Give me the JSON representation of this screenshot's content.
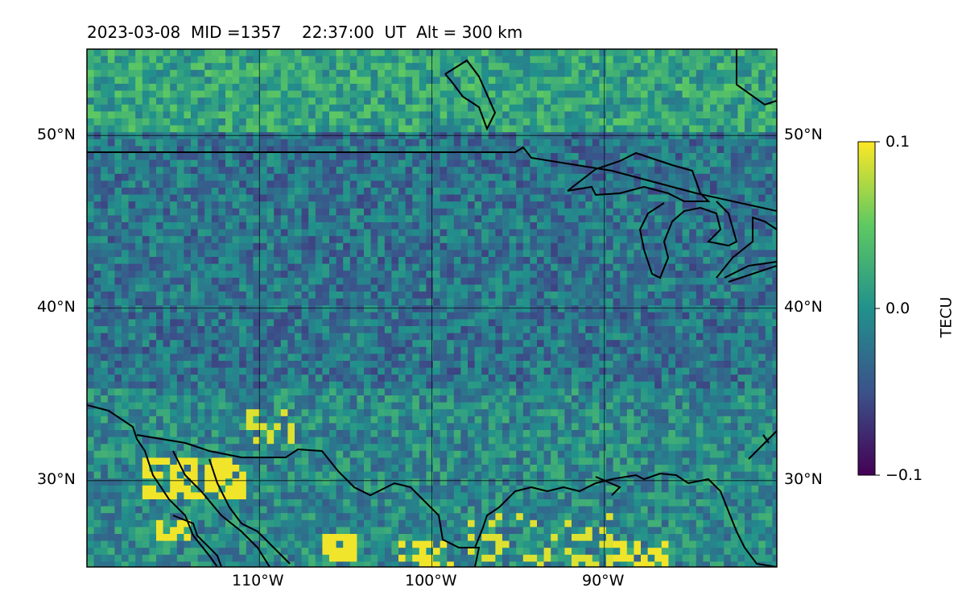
{
  "title": {
    "date": "2023-03-08",
    "mid": "MID =1357",
    "time": "22:37:00  UT",
    "alt": "Alt = 300 km"
  },
  "map": {
    "lon_range": [
      -120,
      -80
    ],
    "lat_range": [
      25,
      55
    ],
    "lon_ticks": [
      {
        "lon": -110,
        "label": "110°W"
      },
      {
        "lon": -100,
        "label": "100°W"
      },
      {
        "lon": -90,
        "label": "90°W"
      }
    ],
    "lat_ticks": [
      {
        "lat": 50,
        "label": "50°N"
      },
      {
        "lat": 40,
        "label": "40°N"
      },
      {
        "lat": 30,
        "label": "30°N"
      }
    ],
    "colormap": "viridis",
    "grid": true
  },
  "colorbar": {
    "label": "TECU",
    "min": -0.1,
    "max": 0.1,
    "ticks": [
      {
        "value": 0.1,
        "label": "0.1"
      },
      {
        "value": 0.0,
        "label": "0.0"
      },
      {
        "value": -0.1,
        "label": "−0.1"
      }
    ],
    "colors": [
      "#440154",
      "#3b528b",
      "#21918c",
      "#5ec962",
      "#fde725"
    ]
  }
}
